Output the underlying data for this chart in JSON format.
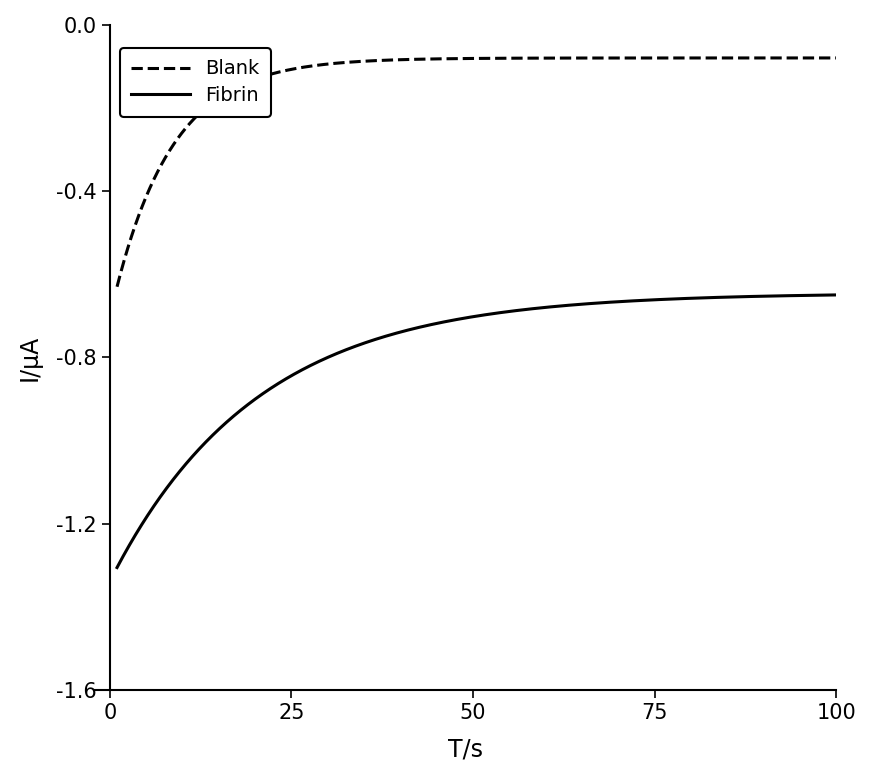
{
  "xlabel": "T/s",
  "ylabel": "I/μA",
  "xlim": [
    -2,
    100
  ],
  "ylim": [
    -1.6,
    0.0
  ],
  "yticks": [
    0.0,
    -0.4,
    -0.8,
    -1.2,
    -1.6
  ],
  "xticks": [
    0,
    25,
    50,
    75,
    100
  ],
  "blank_label": "Blank",
  "fibrin_label": "Fibrin",
  "blank_color": "#000000",
  "fibrin_color": "#000000",
  "background_color": "#ffffff",
  "blank_params": {
    "y_start": -0.63,
    "y_end": -0.08,
    "tau": 8.0,
    "t_start": 1.0
  },
  "fibrin_params": {
    "y_start": -1.305,
    "y_end": -0.645,
    "tau": 20.0,
    "t_start": 1.0
  },
  "linewidth": 2.2,
  "xlabel_fontsize": 17,
  "ylabel_fontsize": 17,
  "tick_fontsize": 15,
  "legend_fontsize": 14
}
